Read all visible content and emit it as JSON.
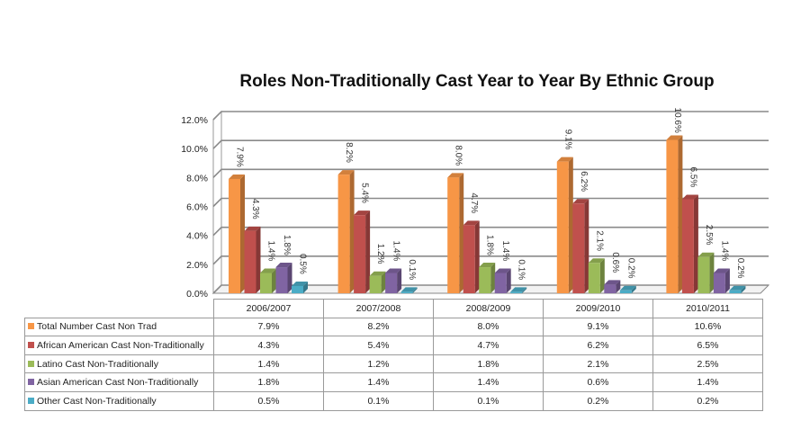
{
  "chart_data": {
    "type": "bar",
    "title": "Roles Non-Traditionally Cast Year to Year By Ethnic Group",
    "categories": [
      "2006/2007",
      "2007/2008",
      "2008/2009",
      "2009/2010",
      "2010/2011"
    ],
    "ylim": [
      0,
      12
    ],
    "yticks": [
      "0.0%",
      "2.0%",
      "4.0%",
      "6.0%",
      "8.0%",
      "10.0%",
      "12.0%"
    ],
    "grid": true,
    "legend": "data-table",
    "series": [
      {
        "name": "Total Number Cast Non Trad",
        "color": "#f79646",
        "values": [
          7.9,
          8.2,
          8.0,
          9.1,
          10.6
        ],
        "labels": [
          "7.9%",
          "8.2%",
          "8.0%",
          "9.1%",
          "10.6%"
        ]
      },
      {
        "name": "African American Cast Non-Traditionally",
        "color": "#c0504d",
        "values": [
          4.3,
          5.4,
          4.7,
          6.2,
          6.5
        ],
        "labels": [
          "4.3%",
          "5.4%",
          "4.7%",
          "6.2%",
          "6.5%"
        ]
      },
      {
        "name": "Latino Cast Non-Traditionally",
        "color": "#9bbb59",
        "values": [
          1.4,
          1.2,
          1.8,
          2.1,
          2.5
        ],
        "labels": [
          "1.4%",
          "1.2%",
          "1.8%",
          "2.1%",
          "2.5%"
        ]
      },
      {
        "name": "Asian American Cast Non-Traditionally",
        "color": "#8064a2",
        "values": [
          1.8,
          1.4,
          1.4,
          0.6,
          1.4
        ],
        "labels": [
          "1.8%",
          "1.4%",
          "1.4%",
          "0.6%",
          "1.4%"
        ]
      },
      {
        "name": "Other Cast Non-Traditionally",
        "color": "#4bacc6",
        "values": [
          0.5,
          0.1,
          0.1,
          0.2,
          0.2
        ],
        "labels": [
          "0.5%",
          "0.1%",
          "0.1%",
          "0.2%",
          "0.2%"
        ]
      }
    ]
  }
}
